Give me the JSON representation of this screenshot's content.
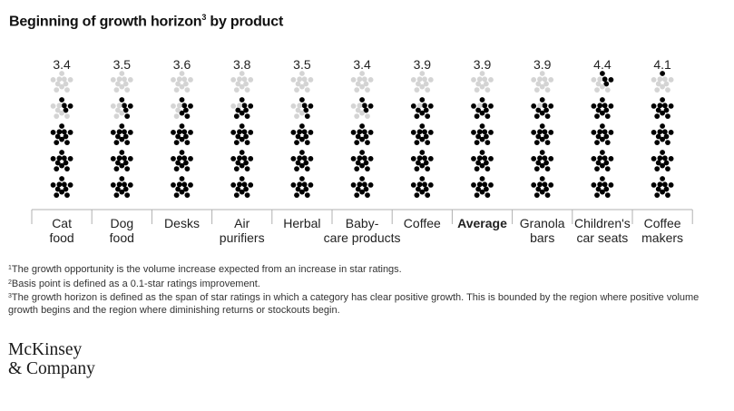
{
  "title": "Beginning of growth horizon",
  "title_sup": "3",
  "title_suffix": "by product",
  "chart_data": {
    "type": "dot-star-rating",
    "title": "Beginning of growth horizon³ by product",
    "max_stars": 5,
    "categories": [
      {
        "line1": "Cat",
        "line2": "food",
        "value": 3.4,
        "bold": false
      },
      {
        "line1": "Dog",
        "line2": "food",
        "value": 3.5,
        "bold": false
      },
      {
        "line1": "Desks",
        "line2": "",
        "value": 3.6,
        "bold": false
      },
      {
        "line1": "Air",
        "line2": "purifiers",
        "value": 3.8,
        "bold": false
      },
      {
        "line1": "Herbal",
        "line2": "",
        "value": 3.5,
        "bold": false
      },
      {
        "line1": "Baby-",
        "line2": "care products",
        "value": 3.4,
        "bold": false
      },
      {
        "line1": "Coffee",
        "line2": "",
        "value": 3.9,
        "bold": false
      },
      {
        "line1": "Average",
        "line2": "",
        "value": 3.9,
        "bold": true
      },
      {
        "line1": "Granola",
        "line2": "bars",
        "value": 3.9,
        "bold": false
      },
      {
        "line1": "Children's",
        "line2": "car seats",
        "value": 4.4,
        "bold": false
      },
      {
        "line1": "Coffee",
        "line2": "makers",
        "value": 4.1,
        "bold": false
      }
    ],
    "colors": {
      "filled": "#000000",
      "empty": "#d4d4d4"
    }
  },
  "footnotes": [
    {
      "num": "1",
      "text": "The growth opportunity is the volume increase expected from an increase in star ratings."
    },
    {
      "num": "2",
      "text": "Basis point is defined as a 0.1-star ratings improvement."
    },
    {
      "num": "3",
      "text": "The growth horizon is defined as the span of star ratings in which a category has clear positive growth. This is bounded by the region where positive volume"
    },
    {
      "num": "",
      "text": " growth begins and the region where diminishing returns or stockouts begin."
    }
  ],
  "logo": {
    "line1": "McKinsey",
    "line2": "& Company"
  }
}
